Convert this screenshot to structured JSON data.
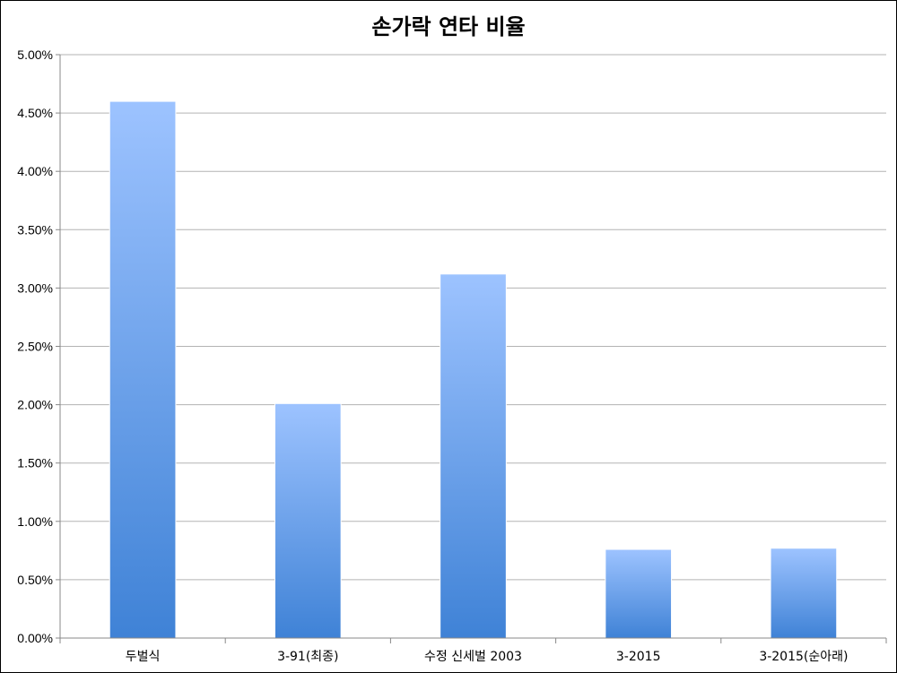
{
  "chart_data": {
    "type": "bar",
    "title": "손가락 연타 비율",
    "xlabel": "",
    "ylabel": "",
    "categories": [
      "두벌식",
      "3-91(최종)",
      "수정 신세벌 2003",
      "3-2015",
      "3-2015(순아래)"
    ],
    "values": [
      4.6,
      2.01,
      3.12,
      0.76,
      0.77
    ],
    "ylim": [
      0,
      5
    ],
    "ytick_values": [
      0,
      0.5,
      1,
      1.5,
      2,
      2.5,
      3,
      3.5,
      4,
      4.5,
      5
    ],
    "ytick_labels": [
      "0.00%",
      "0.50%",
      "1.00%",
      "1.50%",
      "2.00%",
      "2.50%",
      "3.00%",
      "3.50%",
      "4.00%",
      "4.50%",
      "5.00%"
    ],
    "grid": true,
    "legend": "none",
    "colors": {
      "bar_top": "#9dc3ff",
      "bar_bottom": "#3f82d6",
      "grid": "#b3b3b3",
      "axis": "#888888"
    }
  }
}
